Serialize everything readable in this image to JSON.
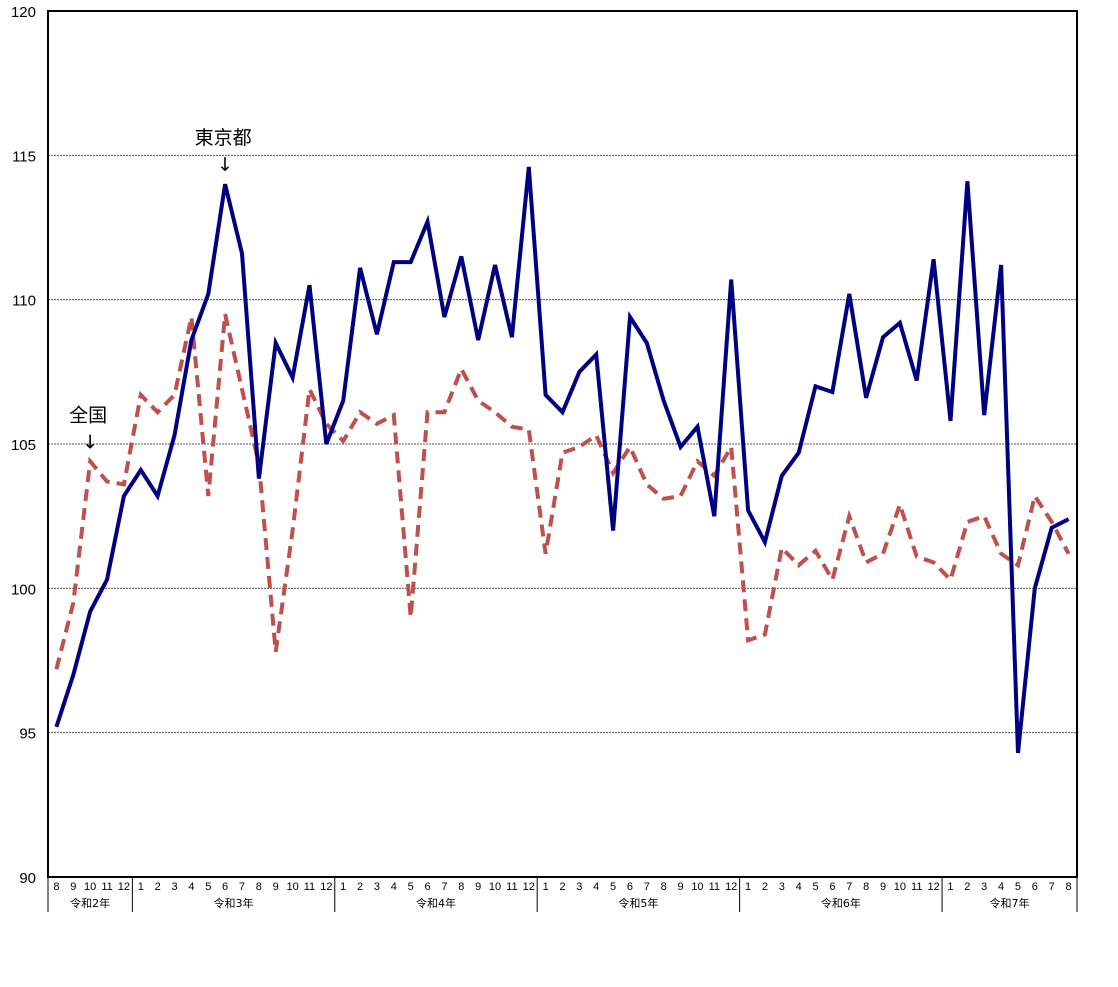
{
  "chart_data": {
    "type": "line",
    "title": "",
    "xlabel": "",
    "ylabel": "",
    "ylim": [
      90,
      120
    ],
    "yticks": [
      90,
      95,
      100,
      105,
      110,
      115,
      120
    ],
    "grid": true,
    "legend_position": "annotations",
    "year_groups": [
      {
        "label": "令和2年",
        "months": [
          "8",
          "9",
          "10",
          "11",
          "12"
        ]
      },
      {
        "label": "令和3年",
        "months": [
          "1",
          "2",
          "3",
          "4",
          "5",
          "6",
          "7",
          "8",
          "9",
          "10",
          "11",
          "12"
        ]
      },
      {
        "label": "令和4年",
        "months": [
          "1",
          "2",
          "3",
          "4",
          "5",
          "6",
          "7",
          "8",
          "9",
          "10",
          "11",
          "12"
        ]
      },
      {
        "label": "令和5年",
        "months": [
          "1",
          "2",
          "3",
          "4",
          "5",
          "6",
          "7",
          "8",
          "9",
          "10",
          "11",
          "12"
        ]
      },
      {
        "label": "令和6年",
        "months": [
          "1",
          "2",
          "3",
          "4",
          "5",
          "6",
          "7",
          "8",
          "9",
          "10",
          "11",
          "12"
        ]
      },
      {
        "label": "令和7年",
        "months": [
          "1",
          "2",
          "3",
          "4",
          "5",
          "6",
          "7",
          "8"
        ]
      }
    ],
    "series": [
      {
        "name": "東京都",
        "color": "#000080",
        "style": "solid",
        "values": [
          95.2,
          97.0,
          99.2,
          100.3,
          103.2,
          104.1,
          103.2,
          105.3,
          108.6,
          110.2,
          114.0,
          111.6,
          103.8,
          108.5,
          107.3,
          110.5,
          105.0,
          106.5,
          111.1,
          108.8,
          111.3,
          111.3,
          112.7,
          109.4,
          111.5,
          108.6,
          111.2,
          108.7,
          114.6,
          106.7,
          106.1,
          107.5,
          108.1,
          102.0,
          109.4,
          108.5,
          106.5,
          104.9,
          105.6,
          102.5,
          110.7,
          102.7,
          101.6,
          103.9,
          104.7,
          107.0,
          106.8,
          110.2,
          106.6,
          108.7,
          109.2,
          107.2,
          111.4,
          105.8,
          114.1,
          106.0,
          111.2,
          94.3,
          100.0,
          102.1,
          102.4
        ]
      },
      {
        "name": "全国",
        "color": "#C0504D",
        "style": "dashed",
        "values": [
          97.2,
          99.5,
          104.4,
          103.7,
          103.6,
          106.7,
          106.1,
          106.7,
          109.4,
          103.2,
          109.5,
          106.9,
          104.3,
          97.8,
          102.0,
          106.9,
          105.7,
          105.1,
          106.1,
          105.7,
          106.0,
          99.0,
          106.1,
          106.1,
          107.6,
          106.5,
          106.1,
          105.6,
          105.5,
          101.2,
          104.7,
          104.9,
          105.3,
          104.0,
          104.9,
          103.6,
          103.1,
          103.2,
          104.4,
          103.9,
          104.9,
          98.2,
          98.4,
          101.4,
          100.8,
          101.3,
          100.3,
          102.5,
          100.9,
          101.2,
          102.9,
          101.1,
          100.9,
          100.3,
          102.3,
          102.5,
          101.2,
          100.8,
          103.2,
          102.3,
          101.2
        ]
      }
    ],
    "annotations": [
      {
        "text": "東京都",
        "arrow": "↓",
        "series": "東京都",
        "point_index": 10
      },
      {
        "text": "全国",
        "arrow": "↓",
        "series": "全国",
        "point_index": 2
      }
    ]
  }
}
